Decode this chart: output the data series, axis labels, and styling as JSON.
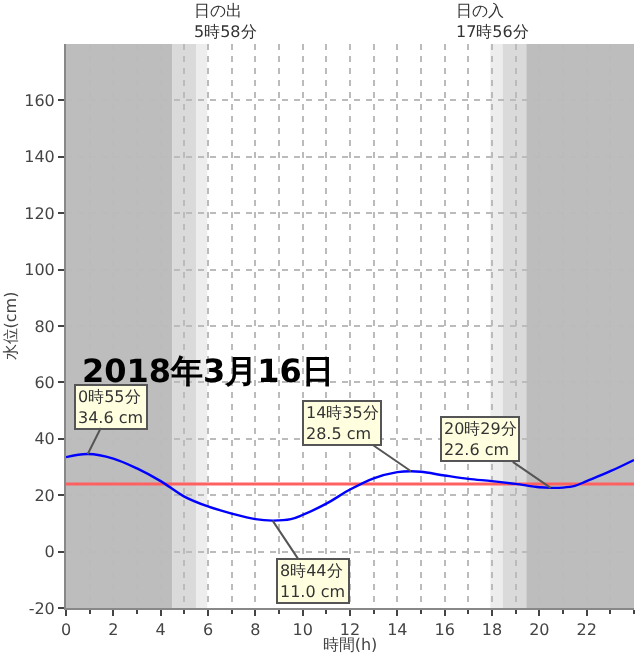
{
  "chart_data": {
    "type": "line",
    "xlabel": "時間(h)",
    "ylabel": "水位(cm)",
    "x": [
      0,
      0.92,
      2,
      3,
      4,
      5,
      6,
      7,
      8,
      8.73,
      9.5,
      10,
      11,
      12,
      13,
      14,
      14.58,
      15,
      16,
      17,
      18,
      19,
      20,
      20.48,
      21,
      21.5,
      22,
      23,
      24
    ],
    "series": [
      {
        "color": "#0000ff",
        "values": [
          33.5,
          34.6,
          33,
          29.5,
          25,
          19.5,
          16,
          13.5,
          11.5,
          11.0,
          11.5,
          13,
          17,
          22,
          26,
          28.2,
          28.5,
          28.3,
          27,
          25.8,
          25,
          24,
          22.8,
          22.6,
          22.7,
          23.3,
          25,
          28.5,
          32.5
        ]
      }
    ],
    "xlim": [
      0,
      24
    ],
    "xticks": [
      0,
      2,
      4,
      6,
      8,
      10,
      12,
      14,
      16,
      18,
      20,
      22
    ],
    "ylim": [
      -20,
      180
    ],
    "yticks": [
      -20,
      0,
      20,
      40,
      60,
      80,
      100,
      120,
      140,
      160
    ],
    "grid": true,
    "marker": "none",
    "line_style": "solid",
    "ref_lines": [
      {
        "axis": "y",
        "value": 24,
        "color": "#ff6060"
      }
    ],
    "bands": [
      {
        "axis": "x",
        "from": 0,
        "to": 4.5,
        "color": "#bdbdbd"
      },
      {
        "axis": "x",
        "from": 4.5,
        "to": 5.5,
        "color": "#dadada"
      },
      {
        "axis": "x",
        "from": 5.5,
        "to": 5.97,
        "color": "#ededed"
      },
      {
        "axis": "x",
        "from": 17.93,
        "to": 18.45,
        "color": "#ededed"
      },
      {
        "axis": "x",
        "from": 18.45,
        "to": 19.45,
        "color": "#dadada"
      },
      {
        "axis": "x",
        "from": 19.45,
        "to": 24,
        "color": "#bdbdbd"
      }
    ],
    "annotations": [
      {
        "text": "0時55分\n34.6 cm",
        "x": 0.92,
        "y": 34.6
      },
      {
        "text": "8時44分\n11.0 cm",
        "x": 8.73,
        "y": 11.0
      },
      {
        "text": "14時35分\n28.5 cm",
        "x": 14.58,
        "y": 28.5
      },
      {
        "text": "20時29分\n22.6 cm",
        "x": 20.48,
        "y": 22.6
      },
      "日の出\n5時58分",
      "日の入\n17時56分",
      "2018年3月16日"
    ]
  }
}
